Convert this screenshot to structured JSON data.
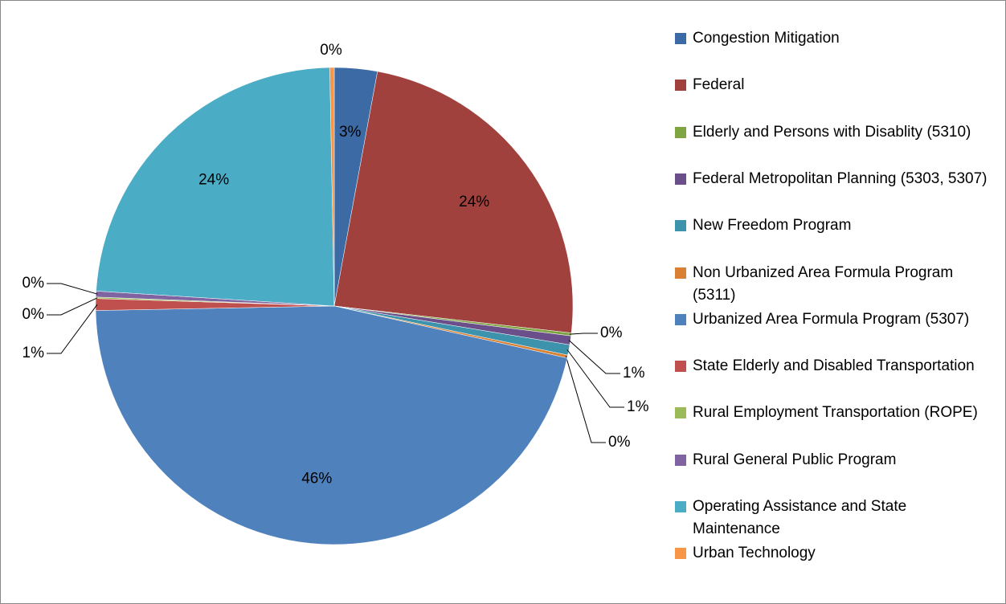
{
  "chart_data": {
    "type": "pie",
    "categories": [
      "Congestion Mitigation",
      "Federal",
      "Elderly and Persons with Disablity (5310)",
      "Federal Metropolitan Planning (5303, 5307)",
      "New Freedom Program",
      "Non Urbanized Area Formula Program (5311)",
      "Urbanized Area Formula Program (5307)",
      "State Elderly and Disabled Transportation",
      "Rural Employment Transportation (ROPE)",
      "Rural General Public Program",
      "Operating Assistance and State Maintenance",
      "Urban Technology"
    ],
    "values": [
      2.9,
      23.9,
      0.2,
      0.6,
      0.7,
      0.2,
      46.2,
      0.8,
      0.1,
      0.4,
      23.7,
      0.3
    ],
    "value_labels": [
      "3%",
      "24%",
      "0%",
      "1%",
      "1%",
      "0%",
      "46%",
      "1%",
      "0%",
      "0%",
      "24%",
      "0%"
    ],
    "colors": [
      "#3c6aa5",
      "#a0413e",
      "#7fa543",
      "#6b4f8a",
      "#3d93ac",
      "#d98033",
      "#4f81bd",
      "#c0504d",
      "#9bbb59",
      "#8064a2",
      "#4bacc6",
      "#f79646"
    ],
    "legend": "right"
  }
}
